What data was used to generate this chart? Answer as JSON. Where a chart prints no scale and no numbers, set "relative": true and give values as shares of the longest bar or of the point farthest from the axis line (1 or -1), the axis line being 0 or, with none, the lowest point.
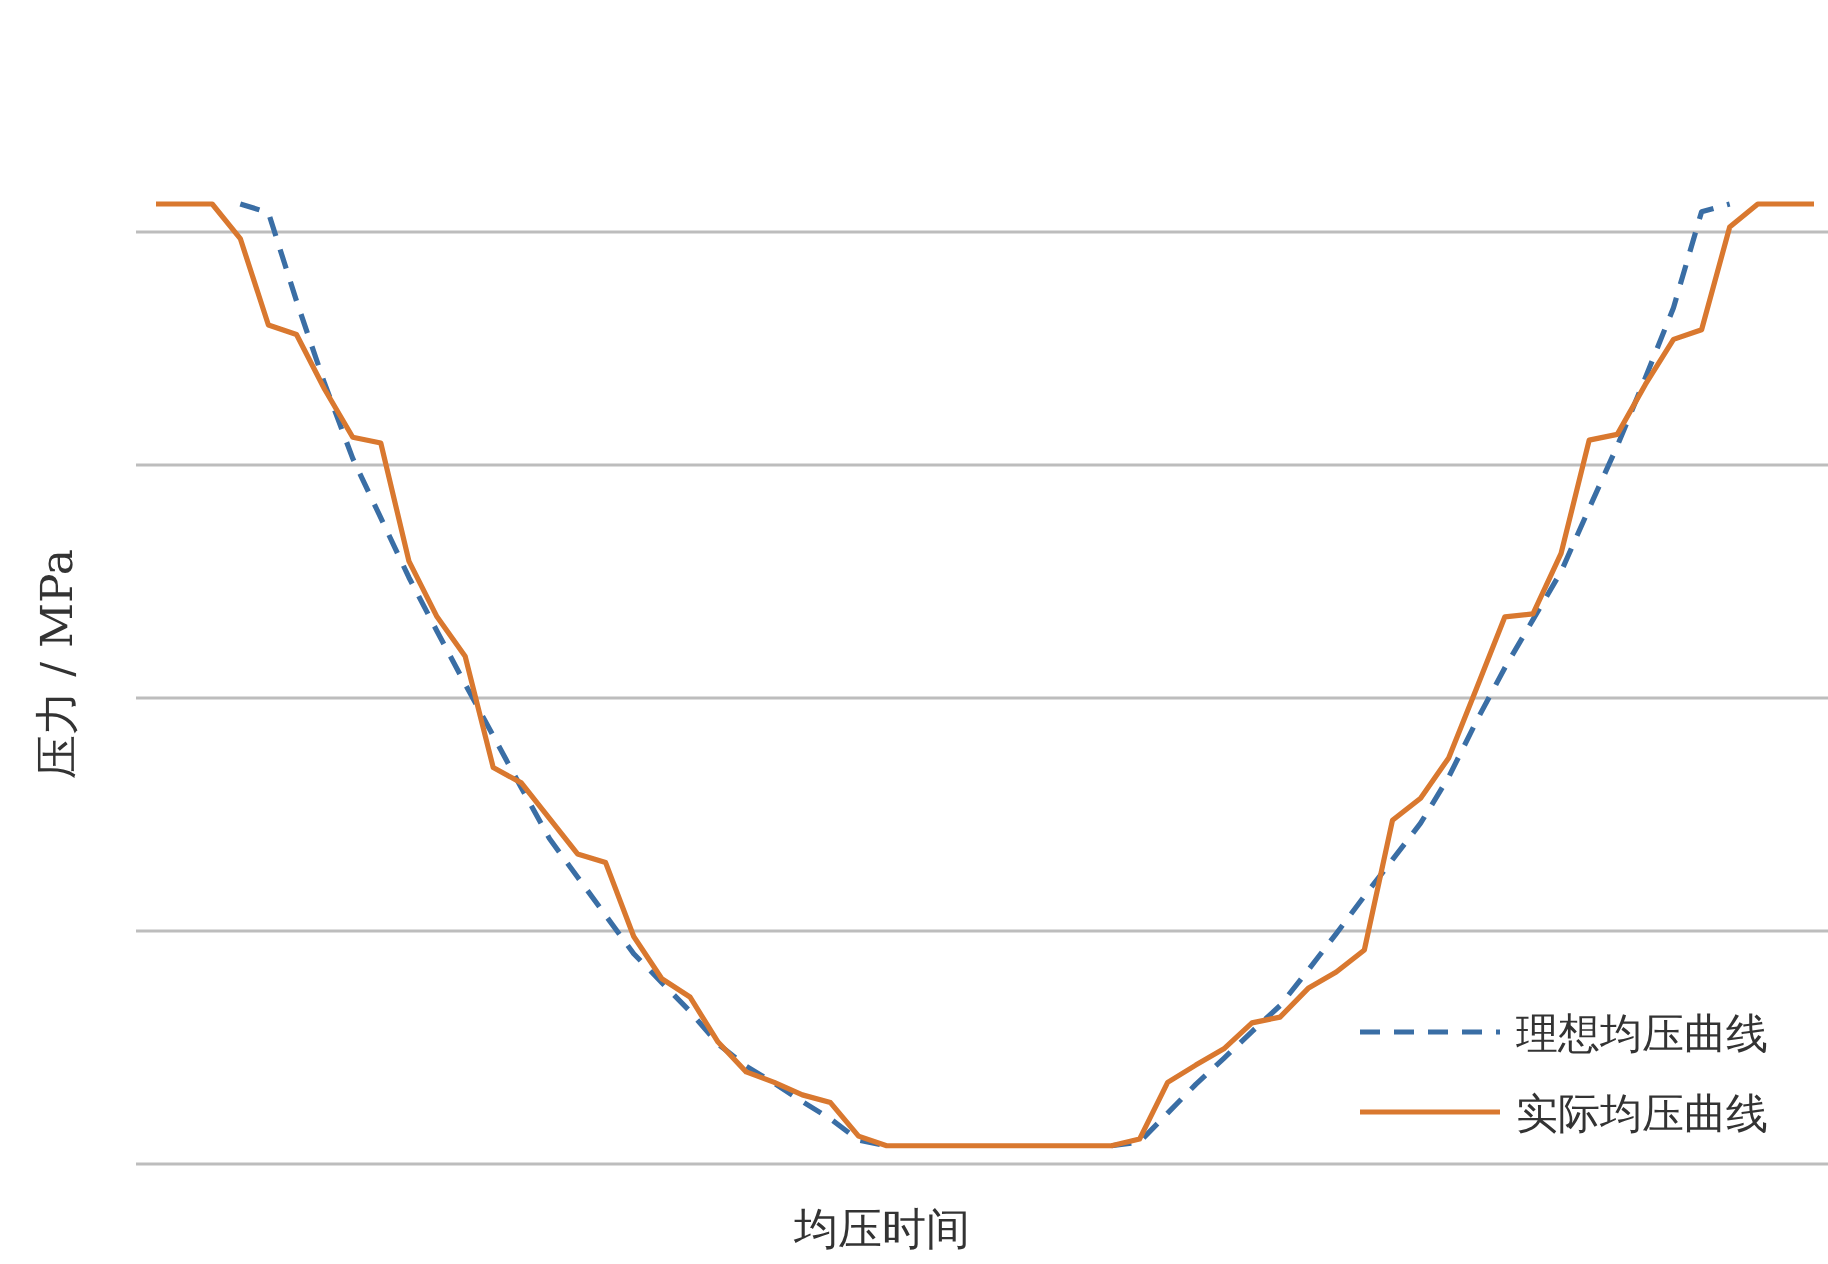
{
  "chart_data": {
    "type": "line",
    "relative": true,
    "xlabel": "均压时间",
    "ylabel": "压力 / MPa",
    "grid": "y",
    "legend": "bottom right",
    "categories": [
      null,
      null,
      null,
      null,
      null,
      null,
      null,
      null,
      null,
      null,
      null,
      null,
      null,
      null,
      null,
      null,
      null,
      null,
      null,
      null,
      null,
      null,
      null,
      null,
      null,
      null,
      null,
      null,
      null,
      null,
      null,
      null,
      null,
      null,
      null,
      null,
      null,
      null,
      null,
      null,
      null,
      null,
      null,
      null,
      null,
      null,
      null,
      null,
      null,
      null,
      null,
      null,
      null,
      null,
      null,
      null,
      null,
      null,
      null,
      null
    ],
    "series": [
      {
        "name": "理想均压曲线",
        "color": "#3a6ea5",
        "line_style": "dashed",
        "values": [
          null,
          null,
          null,
          1.0,
          0.991,
          0.899,
          0.813,
          0.735,
          0.673,
          0.611,
          0.555,
          0.5,
          0.446,
          0.392,
          0.339,
          0.299,
          0.259,
          0.219,
          0.189,
          0.159,
          0.125,
          0.102,
          0.084,
          0.065,
          0.047,
          0.025,
          0.019,
          null,
          null,
          null,
          null,
          null,
          null,
          null,
          0.019,
          0.023,
          0.053,
          0.083,
          0.11,
          0.138,
          0.165,
          0.202,
          0.24,
          0.279,
          0.317,
          0.355,
          0.403,
          0.462,
          0.517,
          0.567,
          0.617,
          0.683,
          0.748,
          0.819,
          0.892,
          0.992,
          1.0,
          null,
          null,
          null
        ]
      },
      {
        "name": "实际均压曲线",
        "color": "#d9782f",
        "line_style": "solid",
        "values": [
          1.0,
          1.0,
          1.0,
          0.964,
          0.874,
          0.864,
          0.807,
          0.757,
          0.751,
          0.628,
          0.57,
          0.529,
          0.413,
          0.397,
          0.36,
          0.323,
          0.314,
          0.237,
          0.193,
          0.174,
          0.127,
          0.096,
          0.085,
          0.072,
          0.064,
          0.029,
          0.019,
          0.019,
          0.019,
          0.019,
          0.019,
          0.019,
          0.019,
          0.019,
          0.019,
          0.026,
          0.085,
          0.103,
          0.12,
          0.147,
          0.153,
          0.183,
          0.2,
          0.223,
          0.358,
          0.381,
          0.423,
          0.496,
          0.57,
          0.573,
          0.636,
          0.754,
          0.76,
          0.812,
          0.859,
          0.869,
          0.976,
          1.0,
          1.0,
          1.0
        ]
      }
    ]
  }
}
